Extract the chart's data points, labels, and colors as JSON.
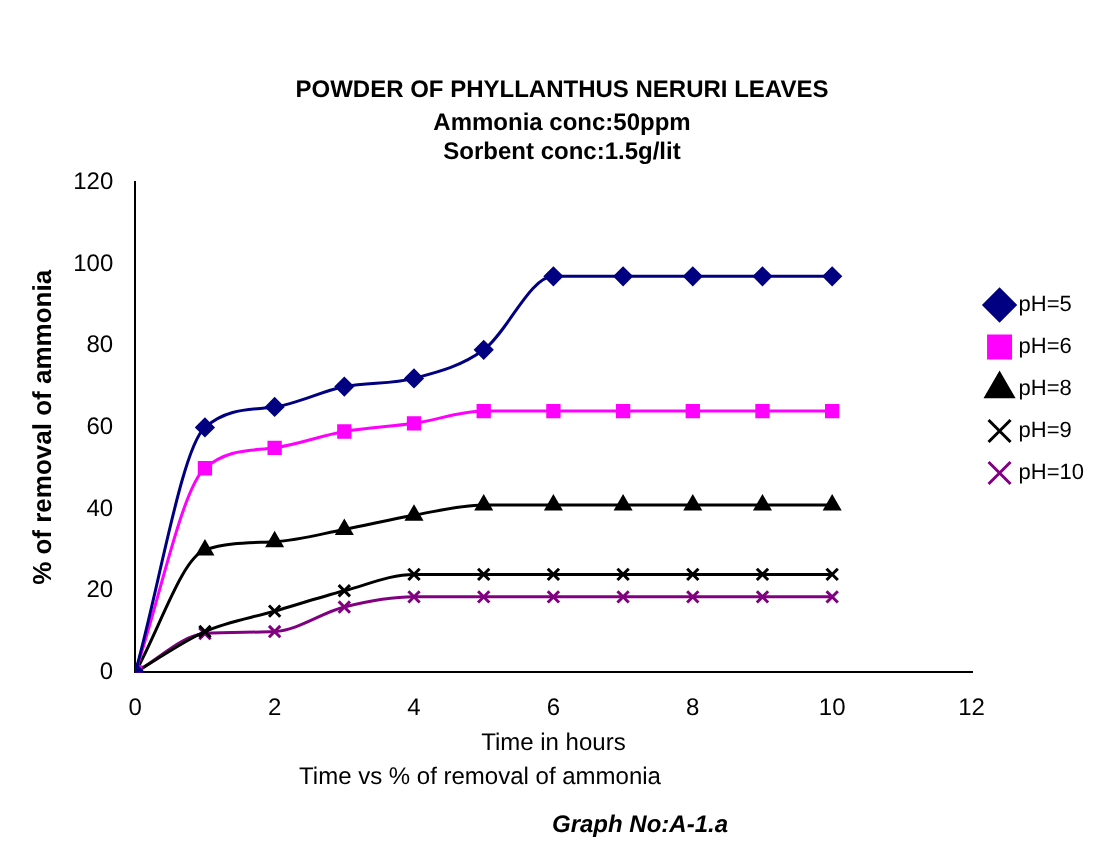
{
  "chart_data": {
    "type": "line",
    "title": "POWDER OF PHYLLANTHUS NERURI LEAVES",
    "subtitle": "Ammonia conc:50ppm\nSorbent conc:1.5g/lit",
    "xlabel": "Time in hours",
    "ylabel": "% of removal of ammonia",
    "annotations": [
      "Time vs % of removal of ammonia",
      "Graph No:A-1.a"
    ],
    "x": [
      0,
      1,
      2,
      3,
      4,
      5,
      6,
      7,
      8,
      9,
      10
    ],
    "series": [
      {
        "name": "pH=5",
        "color": "#000080",
        "marker": "diamond",
        "values": [
          0,
          60,
          65,
          70,
          72,
          79,
          97,
          97,
          97,
          97,
          97
        ]
      },
      {
        "name": "pH=6",
        "color": "#ff00ff",
        "marker": "square",
        "values": [
          0,
          50,
          55,
          59,
          61,
          64,
          64,
          64,
          64,
          64,
          64
        ]
      },
      {
        "name": "pH=8",
        "color": "#000000",
        "marker": "triangle",
        "values": [
          0,
          30,
          32,
          35,
          38.5,
          41,
          41,
          41,
          41,
          41,
          41
        ]
      },
      {
        "name": "pH=9",
        "color": "#000000",
        "marker": "cross",
        "values": [
          0,
          10,
          15,
          20,
          24,
          24,
          24,
          24,
          24,
          24,
          24
        ]
      },
      {
        "name": "pH=10",
        "color": "#800080",
        "marker": "cross",
        "values": [
          0,
          9.5,
          10,
          16,
          18.5,
          18.5,
          18.5,
          18.5,
          18.5,
          18.5,
          18.5
        ]
      }
    ],
    "xlim": [
      0,
      12
    ],
    "xticks": [
      0,
      2,
      4,
      6,
      8,
      10,
      12
    ],
    "ylim": [
      0,
      120
    ],
    "yticks": [
      0,
      20,
      40,
      60,
      80,
      100,
      120
    ],
    "grid": false,
    "legend": "right",
    "line_style": "solid"
  }
}
